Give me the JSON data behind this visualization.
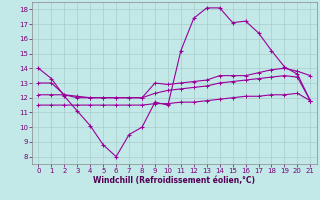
{
  "xlabel": "Windchill (Refroidissement éolien,°C)",
  "background_color": "#c2e8e8",
  "grid_color": "#aacccc",
  "line_color": "#990099",
  "x_ticks": [
    0,
    1,
    2,
    3,
    4,
    5,
    6,
    7,
    8,
    9,
    10,
    11,
    12,
    13,
    14,
    15,
    16,
    17,
    18,
    19,
    20,
    21
  ],
  "y_ticks": [
    8,
    9,
    10,
    11,
    12,
    13,
    14,
    15,
    16,
    17,
    18
  ],
  "xlim": [
    -0.5,
    21.5
  ],
  "ylim": [
    7.5,
    18.5
  ],
  "series1_x": [
    0,
    1,
    2,
    3,
    4,
    5,
    6,
    7,
    8,
    9,
    10,
    11,
    12,
    13,
    14,
    15,
    16,
    17,
    18,
    19,
    20,
    21
  ],
  "series1_y": [
    14.0,
    13.3,
    12.1,
    11.1,
    10.1,
    8.8,
    8.0,
    9.5,
    10.0,
    11.7,
    11.5,
    15.2,
    17.4,
    18.1,
    18.1,
    17.1,
    17.2,
    16.4,
    15.2,
    14.1,
    13.6,
    11.8
  ],
  "series2_x": [
    0,
    1,
    2,
    3,
    4,
    5,
    6,
    7,
    8,
    9,
    10,
    11,
    12,
    13,
    14,
    15,
    16,
    17,
    18,
    19,
    20,
    21
  ],
  "series2_y": [
    13.0,
    13.0,
    12.2,
    12.0,
    12.0,
    12.0,
    12.0,
    12.0,
    12.0,
    13.0,
    12.9,
    13.0,
    13.1,
    13.2,
    13.5,
    13.5,
    13.5,
    13.7,
    13.9,
    14.0,
    13.8,
    13.5
  ],
  "series3_x": [
    0,
    1,
    2,
    3,
    4,
    5,
    6,
    7,
    8,
    9,
    10,
    11,
    12,
    13,
    14,
    15,
    16,
    17,
    18,
    19,
    20,
    21
  ],
  "series3_y": [
    12.2,
    12.2,
    12.2,
    12.1,
    12.0,
    12.0,
    12.0,
    12.0,
    12.0,
    12.3,
    12.5,
    12.6,
    12.7,
    12.8,
    13.0,
    13.1,
    13.2,
    13.3,
    13.4,
    13.5,
    13.4,
    11.8
  ],
  "series4_x": [
    0,
    1,
    2,
    3,
    4,
    5,
    6,
    7,
    8,
    9,
    10,
    11,
    12,
    13,
    14,
    15,
    16,
    17,
    18,
    19,
    20,
    21
  ],
  "series4_y": [
    11.5,
    11.5,
    11.5,
    11.5,
    11.5,
    11.5,
    11.5,
    11.5,
    11.5,
    11.6,
    11.6,
    11.7,
    11.7,
    11.8,
    11.9,
    12.0,
    12.1,
    12.1,
    12.2,
    12.2,
    12.3,
    11.8
  ]
}
